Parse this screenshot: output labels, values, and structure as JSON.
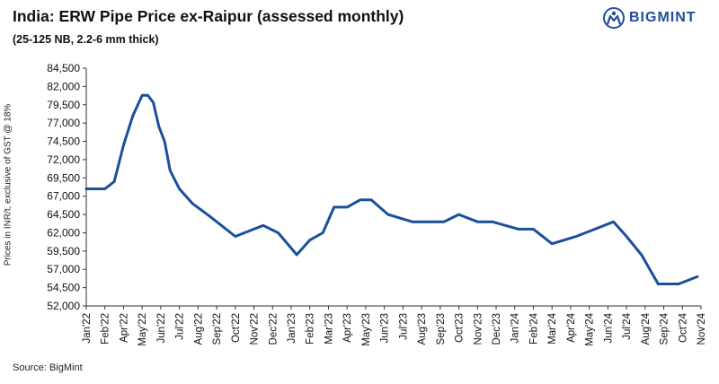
{
  "header": {
    "title": "India: ERW Pipe Price ex-Raipur (assessed monthly)",
    "subtitle": "(25-125 NB, 2.2-6 mm thick)",
    "logo_text": "BIGMINT"
  },
  "footer": {
    "source": "Source: BigMint"
  },
  "colors": {
    "line": "#1a4f9c",
    "axis": "#333333",
    "logo": "#1f4e99"
  },
  "chart_data": {
    "type": "line",
    "title": "India: ERW Pipe Price ex-Raipur (assessed monthly)",
    "subtitle": "(25-125 NB, 2.2-6 mm thick)",
    "ylabel": "Prices in INR/t, exclusive of GST @ 18%",
    "xlabel": "",
    "ylim": [
      52000,
      84500
    ],
    "yticks": [
      52000,
      54500,
      57000,
      59500,
      62000,
      64500,
      67000,
      69500,
      72000,
      74500,
      77000,
      79500,
      82000,
      84500
    ],
    "ytick_labels": [
      "52,000",
      "54,500",
      "57,000",
      "59,500",
      "62,000",
      "64,500",
      "67,000",
      "69,500",
      "72,000",
      "74,500",
      "77,000",
      "79,500",
      "82,000",
      "84,500"
    ],
    "xtick_labels": [
      "Jan'22",
      "Feb'22",
      "Apr'22",
      "May'22",
      "Jun'22",
      "Jul'22",
      "Aug'22",
      "Sep'22",
      "Oct'22",
      "Nov'22",
      "Dec'22",
      "Jan'23",
      "Feb'23",
      "Mar'23",
      "Apr'23",
      "May'23",
      "Jun'23",
      "Jul'23",
      "Aug'23",
      "Sep'23",
      "Oct'23",
      "Nov'23",
      "Dec'23",
      "Jan'24",
      "Feb'24",
      "Mar'24",
      "Apr'24",
      "May'24",
      "Jun'24",
      "Jul'24",
      "Aug'24",
      "Sep'24",
      "Oct'24",
      "Nov'24"
    ],
    "grid": false,
    "legend": "none",
    "series": [
      {
        "x": [
          0,
          1,
          1.5,
          2,
          2.5,
          3,
          3.3,
          3.6,
          3.9,
          4.2,
          4.5,
          5,
          5.7,
          6.5,
          7,
          8,
          9,
          9.5,
          10.3,
          11.3,
          12,
          12.7,
          13.3,
          14,
          14.7,
          15.3,
          16.2,
          17.5,
          18.5,
          19.2,
          20,
          21,
          21.8,
          23.2,
          24,
          25,
          26.3,
          27.3,
          28.3,
          29,
          29.8,
          30.7,
          31.8,
          32.8
        ],
        "values": [
          68000,
          68000,
          69000,
          74000,
          78000,
          80800,
          80800,
          79800,
          76500,
          74500,
          70500,
          68000,
          66000,
          64500,
          63500,
          61500,
          62500,
          63000,
          62000,
          59000,
          61000,
          62000,
          65500,
          65500,
          66500,
          66500,
          64500,
          63500,
          63500,
          63500,
          64500,
          63500,
          63500,
          62500,
          62500,
          60500,
          61500,
          62500,
          63500,
          61500,
          59000,
          55000,
          55000,
          56000
        ]
      }
    ]
  }
}
